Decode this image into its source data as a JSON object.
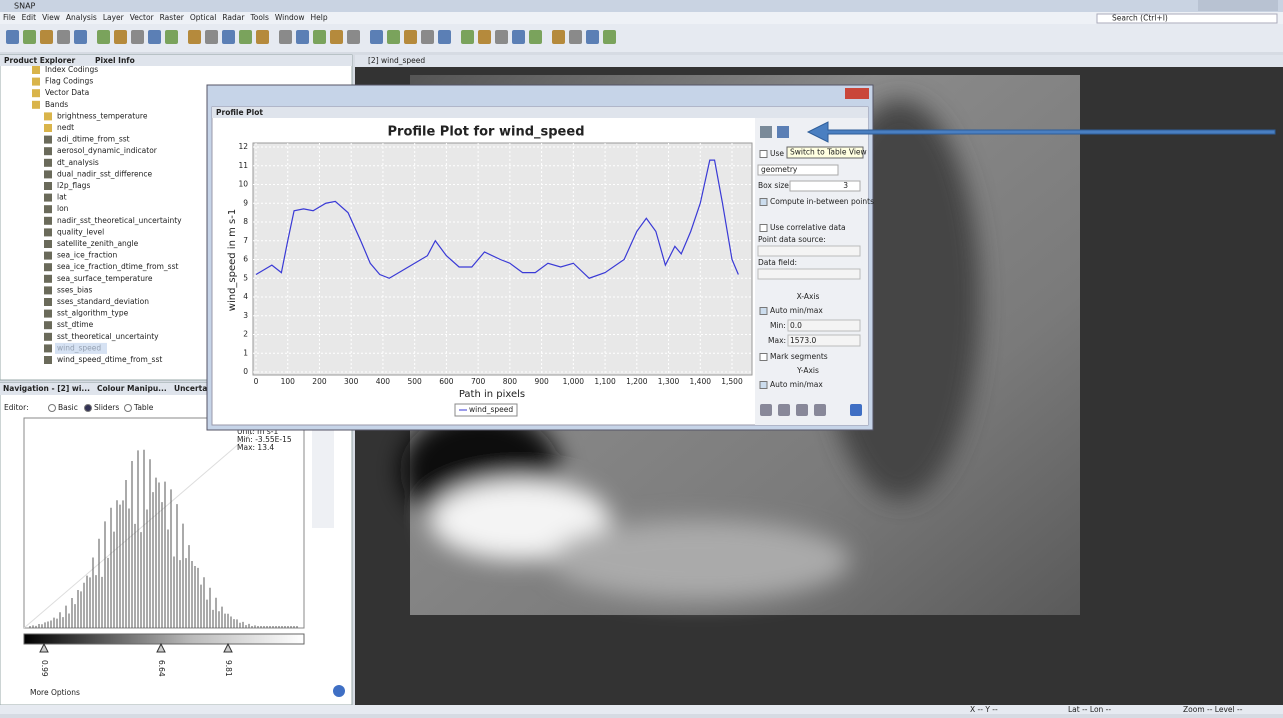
{
  "app": {
    "title": "SNAP",
    "menu": [
      "File",
      "Edit",
      "View",
      "Analysis",
      "Layer",
      "Vector",
      "Raster",
      "Optical",
      "Radar",
      "Tools",
      "Window",
      "Help"
    ],
    "search": "Search (Ctrl+I)"
  },
  "explorer": {
    "tabs": [
      "Product Explorer",
      "Pixel Info"
    ],
    "tree": [
      "Index Codings",
      "Flag Codings",
      "Vector Data",
      "Bands",
      "brightness_temperature",
      "nedt",
      "adi_dtime_from_sst",
      "aerosol_dynamic_indicator",
      "dt_analysis",
      "dual_nadir_sst_difference",
      "l2p_flags",
      "lat",
      "lon",
      "nadir_sst_theoretical_uncertainty",
      "quality_level",
      "satellite_zenith_angle",
      "sea_ice_fraction",
      "sea_ice_fraction_dtime_from_sst",
      "sea_surface_temperature",
      "sses_bias",
      "sses_standard_deviation",
      "sst_algorithm_type",
      "sst_dtime",
      "sst_theoretical_uncertainty",
      "wind_speed",
      "wind_speed_dtime_from_sst"
    ]
  },
  "colour": {
    "tabs": [
      "Navigation - [2] wi...",
      "Colour Manipu...",
      "Uncertain"
    ],
    "editor": "Editor:",
    "modes": [
      "Basic",
      "Sliders",
      "Table"
    ],
    "info": [
      "Unit: m s-1",
      "Min: -3.55E-15",
      "Max: 13.4"
    ],
    "sliders": [
      "0.99",
      "6.64",
      "9.81"
    ],
    "more": "More Options"
  },
  "view": {
    "tab": "[2] wind_speed"
  },
  "dialog": {
    "tab": "Profile Plot",
    "tooltip": "Switch to Table View",
    "side": {
      "use_roi": "Use r",
      "geometry": "geometry",
      "box_size": "Box size:",
      "box_value": "3",
      "compute": "Compute in-between points",
      "correlative": "Use correlative data",
      "point_source": "Point data source:",
      "data_field": "Data field:",
      "x_axis": "X-Axis",
      "x_auto": "Auto min/max",
      "min": "Min:",
      "min_value": "0.0",
      "max": "Max:",
      "max_value": "1573.0",
      "mark": "Mark segments",
      "y_axis": "Y-Axis",
      "y_auto": "Auto min/max"
    }
  },
  "status": [
    "X -- Y --",
    "Lat -- Lon --",
    "Zoom -- Level --"
  ],
  "chart_data": {
    "type": "line",
    "title": "Profile Plot for wind_speed",
    "x_label": "Path in pixels",
    "y_label": "wind_speed in m s-1",
    "x": [
      0,
      30,
      50,
      80,
      100,
      120,
      150,
      180,
      220,
      250,
      290,
      330,
      360,
      390,
      420,
      460,
      500,
      540,
      565,
      600,
      640,
      680,
      720,
      770,
      800,
      840,
      880,
      920,
      960,
      1000,
      1050,
      1100,
      1160,
      1200,
      1230,
      1260,
      1290,
      1320,
      1340,
      1370,
      1400,
      1430,
      1445,
      1470,
      1500,
      1520
    ],
    "series": [
      {
        "name": "wind_speed",
        "color": "#3a3ad6",
        "values": [
          5.2,
          5.5,
          5.7,
          5.3,
          7,
          8.6,
          8.7,
          8.6,
          9,
          9.1,
          8.5,
          7,
          5.8,
          5.2,
          5,
          5.4,
          5.8,
          6.2,
          7,
          6.2,
          5.6,
          5.6,
          6.4,
          6,
          5.8,
          5.3,
          5.3,
          5.8,
          5.6,
          5.8,
          5,
          5.3,
          6,
          7.5,
          8.2,
          7.5,
          5.7,
          6.7,
          6.3,
          7.5,
          9,
          11.3,
          11.3,
          9,
          6,
          5.2
        ]
      }
    ],
    "xlim": [
      0,
      1563
    ],
    "xticks": [
      0,
      100,
      200,
      300,
      400,
      500,
      600,
      700,
      800,
      900,
      {
        "value": 1000,
        "label": "1,000"
      },
      {
        "value": 1100,
        "label": "1,100"
      },
      {
        "value": 1200,
        "label": "1,200"
      },
      {
        "value": 1300,
        "label": "1,300"
      },
      {
        "value": 1400,
        "label": "1,400"
      },
      {
        "value": 1500,
        "label": "1,500"
      }
    ],
    "ylim": [
      0,
      12
    ],
    "yticks": [
      0,
      1,
      2,
      3,
      4,
      5,
      6,
      7,
      8,
      9,
      10,
      11,
      12
    ],
    "grid": true
  }
}
